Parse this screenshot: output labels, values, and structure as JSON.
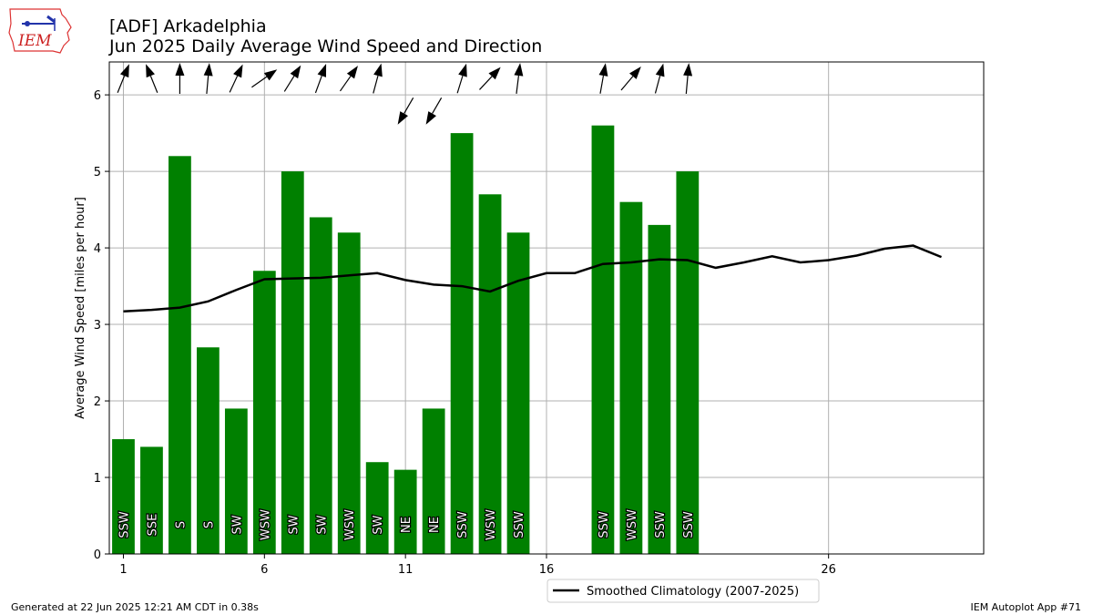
{
  "header": {
    "title_line1": "[ADF] Arkadelphia",
    "title_line2": "Jun 2025 Daily Average Wind Speed and Direction"
  },
  "logo": {
    "text": "IEM",
    "icon": "iem-logo-icon"
  },
  "footer": {
    "left": "Generated at 22 Jun 2025 12:21 AM CDT in 0.38s",
    "right": "IEM Autoplot App #71"
  },
  "colors": {
    "bar": "#008000",
    "line": "#000000",
    "grid": "#b0b0b0"
  },
  "chart_data": {
    "type": "bar",
    "ylabel": "Average Wind Speed [miles per hour]",
    "xlim": [
      0.5,
      31.5
    ],
    "ylim": [
      0,
      6.43
    ],
    "xticks": [
      1,
      6,
      11,
      16,
      26
    ],
    "yticks": [
      0,
      1,
      2,
      3,
      4,
      5,
      6
    ],
    "grid": true,
    "legend_position": "bottom-center",
    "bars": [
      {
        "day": 1,
        "speed": 1.5,
        "dir": "SSW",
        "deg": 202
      },
      {
        "day": 2,
        "speed": 1.4,
        "dir": "SSE",
        "deg": 158
      },
      {
        "day": 3,
        "speed": 5.2,
        "dir": "S",
        "deg": 180
      },
      {
        "day": 4,
        "speed": 2.7,
        "dir": "S",
        "deg": 185
      },
      {
        "day": 5,
        "speed": 1.9,
        "dir": "SW",
        "deg": 205
      },
      {
        "day": 6,
        "speed": 3.7,
        "dir": "WSW",
        "deg": 235
      },
      {
        "day": 7,
        "speed": 5.0,
        "dir": "SW",
        "deg": 212
      },
      {
        "day": 8,
        "speed": 4.4,
        "dir": "SW",
        "deg": 200
      },
      {
        "day": 9,
        "speed": 4.2,
        "dir": "WSW",
        "deg": 215
      },
      {
        "day": 10,
        "speed": 1.2,
        "dir": "SW",
        "deg": 195
      },
      {
        "day": 11,
        "speed": 1.1,
        "dir": "NE",
        "deg": 30
      },
      {
        "day": 12,
        "speed": 1.9,
        "dir": "NE",
        "deg": 30
      },
      {
        "day": 13,
        "speed": 5.5,
        "dir": "SSW",
        "deg": 197
      },
      {
        "day": 14,
        "speed": 4.7,
        "dir": "WSW",
        "deg": 223
      },
      {
        "day": 15,
        "speed": 4.2,
        "dir": "SSW",
        "deg": 187
      },
      {
        "day": 18,
        "speed": 5.6,
        "dir": "SSW",
        "deg": 190
      },
      {
        "day": 19,
        "speed": 4.6,
        "dir": "WSW",
        "deg": 220
      },
      {
        "day": 20,
        "speed": 4.3,
        "dir": "SSW",
        "deg": 195
      },
      {
        "day": 21,
        "speed": 5.0,
        "dir": "SSW",
        "deg": 185
      }
    ],
    "climatology": {
      "name": "Smoothed Climatology (2007-2025)",
      "x": [
        1,
        2,
        3,
        4,
        5,
        6,
        7,
        8,
        9,
        10,
        11,
        12,
        13,
        14,
        15,
        16,
        17,
        18,
        19,
        20,
        21,
        22,
        23,
        24,
        25,
        26,
        27,
        28,
        29,
        30
      ],
      "y": [
        3.17,
        3.19,
        3.22,
        3.3,
        3.45,
        3.59,
        3.6,
        3.61,
        3.64,
        3.67,
        3.58,
        3.52,
        3.5,
        3.43,
        3.57,
        3.67,
        3.67,
        3.79,
        3.81,
        3.85,
        3.84,
        3.74,
        3.81,
        3.89,
        3.81,
        3.84,
        3.9,
        3.99,
        4.03,
        3.88
      ]
    }
  }
}
